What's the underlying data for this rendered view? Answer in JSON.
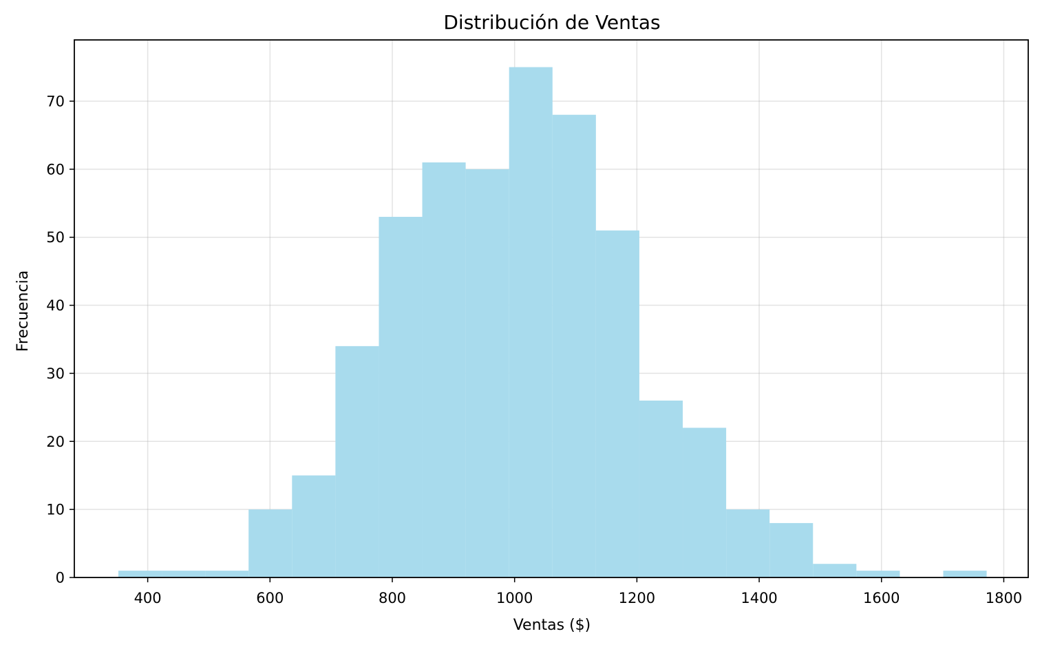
{
  "chart_data": {
    "type": "histogram",
    "title": "Distribución de Ventas",
    "xlabel": "Ventas ($)",
    "ylabel": "Frecuencia",
    "xlim": [
      280,
      1840
    ],
    "ylim": [
      0,
      79
    ],
    "x_ticks": [
      400,
      600,
      800,
      1000,
      1200,
      1400,
      1600,
      1800
    ],
    "y_ticks": [
      0,
      10,
      20,
      30,
      40,
      50,
      60,
      70
    ],
    "grid": true,
    "bar_color": "#a8dbed",
    "bins": [
      {
        "start": 352,
        "end": 423,
        "count": 1
      },
      {
        "start": 423,
        "end": 494,
        "count": 1
      },
      {
        "start": 494,
        "end": 565,
        "count": 1
      },
      {
        "start": 565,
        "end": 636,
        "count": 10
      },
      {
        "start": 636,
        "end": 707,
        "count": 15
      },
      {
        "start": 707,
        "end": 778,
        "count": 34
      },
      {
        "start": 778,
        "end": 849,
        "count": 53
      },
      {
        "start": 849,
        "end": 920,
        "count": 61
      },
      {
        "start": 920,
        "end": 991,
        "count": 60
      },
      {
        "start": 991,
        "end": 1062,
        "count": 75
      },
      {
        "start": 1062,
        "end": 1133,
        "count": 68
      },
      {
        "start": 1133,
        "end": 1204,
        "count": 51
      },
      {
        "start": 1204,
        "end": 1275,
        "count": 26
      },
      {
        "start": 1275,
        "end": 1346,
        "count": 22
      },
      {
        "start": 1346,
        "end": 1417,
        "count": 10
      },
      {
        "start": 1417,
        "end": 1488,
        "count": 8
      },
      {
        "start": 1488,
        "end": 1559,
        "count": 2
      },
      {
        "start": 1559,
        "end": 1630,
        "count": 1
      },
      {
        "start": 1630,
        "end": 1701,
        "count": 0
      },
      {
        "start": 1701,
        "end": 1772,
        "count": 1
      }
    ]
  }
}
